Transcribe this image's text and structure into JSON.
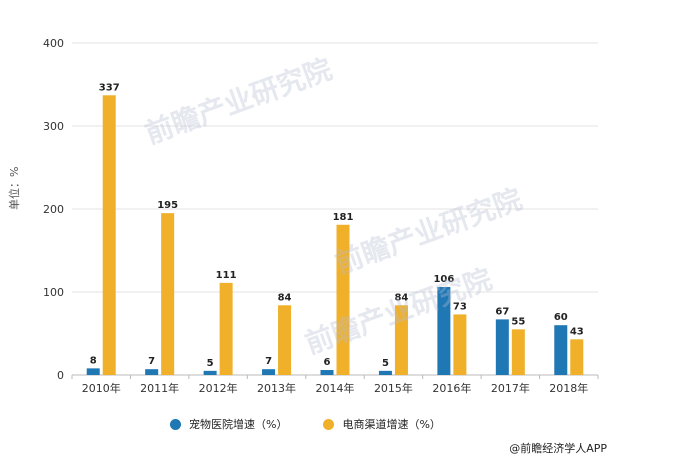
{
  "chart_data": {
    "type": "bar",
    "categories": [
      "2010年",
      "2011年",
      "2012年",
      "2013年",
      "2014年",
      "2015年",
      "2016年",
      "2017年",
      "2018年"
    ],
    "series": [
      {
        "name": "宠物医院增速（%）",
        "color": "#1f77b4",
        "values": [
          8,
          7,
          5,
          7,
          6,
          5,
          106,
          67,
          60
        ]
      },
      {
        "name": "电商渠道增速（%）",
        "color": "#f0b02a",
        "values": [
          337,
          195,
          111,
          84,
          181,
          84,
          73,
          55,
          43
        ]
      }
    ],
    "ylabel": "单位：%",
    "ylim": [
      0,
      400
    ],
    "yticks": [
      0,
      100,
      200,
      300,
      400
    ],
    "grid": true,
    "legend_position": "bottom"
  },
  "watermark_text": "前瞻产业研究院",
  "credit": "@前瞻经济学人APP"
}
